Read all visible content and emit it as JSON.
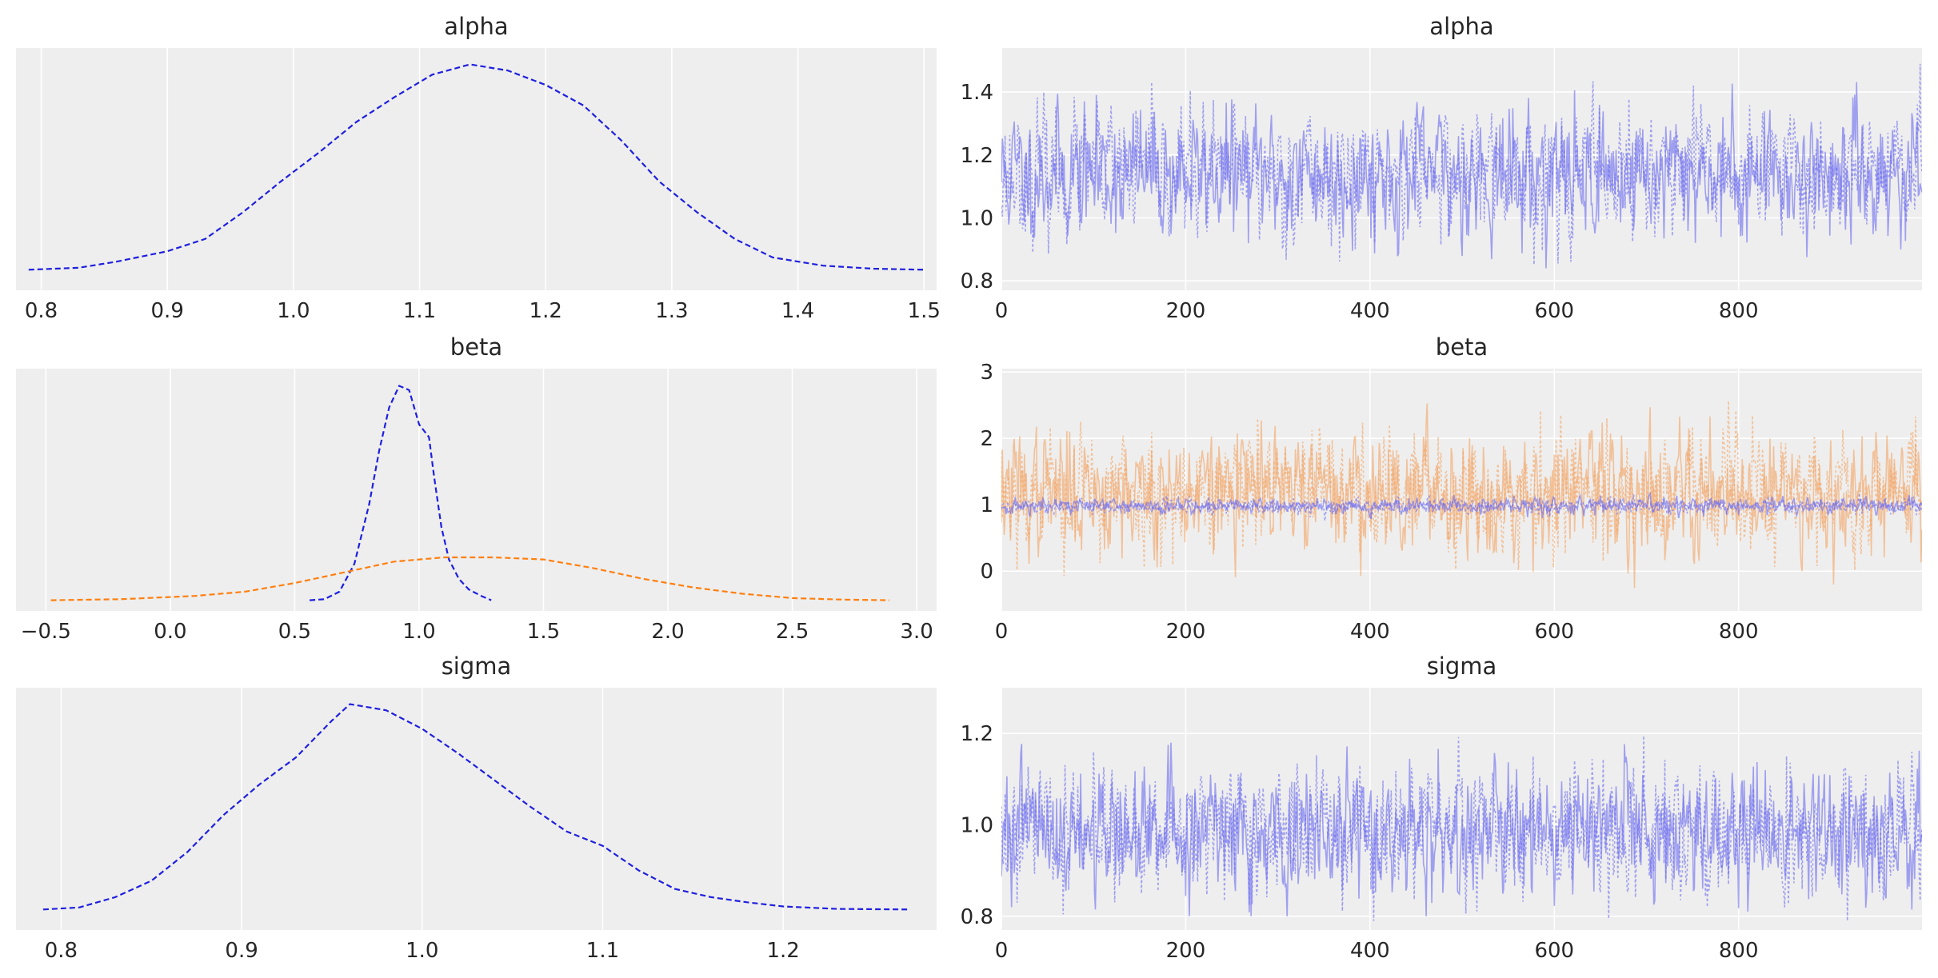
{
  "chart_data": [
    {
      "id": "kde-alpha",
      "type": "line",
      "title": "alpha",
      "xlim": [
        0.78,
        1.51
      ],
      "ylim": [
        -0.1,
        1.08
      ],
      "xticks": [
        0.8,
        0.9,
        1.0,
        1.1,
        1.2,
        1.3,
        1.4,
        1.5
      ],
      "xtick_labels": [
        "0.8",
        "0.9",
        "1.0",
        "1.1",
        "1.2",
        "1.3",
        "1.4",
        "1.5"
      ],
      "yticks": [],
      "ytick_labels": [],
      "series": [
        {
          "color": "#1f1fe0",
          "dash": "dashed",
          "x": [
            0.79,
            0.83,
            0.86,
            0.9,
            0.93,
            0.96,
            0.99,
            1.02,
            1.05,
            1.08,
            1.11,
            1.14,
            1.17,
            1.2,
            1.23,
            1.26,
            1.29,
            1.32,
            1.35,
            1.38,
            1.42,
            1.46,
            1.5
          ],
          "y": [
            0.0,
            0.01,
            0.04,
            0.09,
            0.15,
            0.28,
            0.43,
            0.57,
            0.72,
            0.84,
            0.95,
            1.0,
            0.97,
            0.9,
            0.8,
            0.63,
            0.43,
            0.28,
            0.15,
            0.06,
            0.02,
            0.005,
            0.0
          ]
        }
      ]
    },
    {
      "id": "trace-alpha",
      "type": "line",
      "title": "alpha",
      "xlim": [
        0,
        999
      ],
      "ylim": [
        0.77,
        1.54
      ],
      "xticks": [
        0,
        200,
        400,
        600,
        800
      ],
      "xtick_labels": [
        "0",
        "200",
        "400",
        "600",
        "800"
      ],
      "yticks": [
        0.8,
        1.0,
        1.2,
        1.4
      ],
      "ytick_labels": [
        "0.8",
        "1.0",
        "1.2",
        "1.4"
      ],
      "trace": [
        {
          "color": "#6b6bf0",
          "dash": "solid",
          "mean": 1.14,
          "sd": 0.1,
          "min": 0.84,
          "max": 1.47,
          "seed": 11
        },
        {
          "color": "#6b6bf0",
          "dash": "dotted",
          "mean": 1.14,
          "sd": 0.1,
          "min": 0.8,
          "max": 1.5,
          "seed": 23
        }
      ]
    },
    {
      "id": "kde-beta",
      "type": "line",
      "title": "beta",
      "xlim": [
        -0.62,
        3.08
      ],
      "ylim": [
        -0.05,
        1.08
      ],
      "xticks": [
        -0.5,
        0.0,
        0.5,
        1.0,
        1.5,
        2.0,
        2.5,
        3.0
      ],
      "xtick_labels": [
        "−0.5",
        "0.0",
        "0.5",
        "1.0",
        "1.5",
        "2.0",
        "2.5",
        "3.0"
      ],
      "yticks": [],
      "ytick_labels": [],
      "series": [
        {
          "color": "#1f1fe0",
          "dash": "dashed",
          "x": [
            0.56,
            0.62,
            0.68,
            0.74,
            0.8,
            0.84,
            0.88,
            0.92,
            0.96,
            1.0,
            1.04,
            1.06,
            1.09,
            1.12,
            1.16,
            1.2,
            1.25,
            1.29
          ],
          "y": [
            0.0,
            0.005,
            0.04,
            0.17,
            0.45,
            0.7,
            0.9,
            1.0,
            0.98,
            0.82,
            0.76,
            0.58,
            0.34,
            0.19,
            0.1,
            0.05,
            0.02,
            0.0
          ]
        },
        {
          "color": "#ff7f0e",
          "dash": "dashed",
          "x": [
            -0.48,
            -0.2,
            0.1,
            0.3,
            0.5,
            0.7,
            0.9,
            1.1,
            1.3,
            1.5,
            1.7,
            1.9,
            2.1,
            2.3,
            2.5,
            2.7,
            2.89
          ],
          "y": [
            0.0,
            0.005,
            0.02,
            0.04,
            0.08,
            0.13,
            0.18,
            0.2,
            0.2,
            0.19,
            0.15,
            0.1,
            0.06,
            0.03,
            0.01,
            0.003,
            0.0
          ]
        }
      ]
    },
    {
      "id": "trace-beta",
      "type": "line",
      "title": "beta",
      "xlim": [
        0,
        999
      ],
      "ylim": [
        -0.6,
        3.05
      ],
      "xticks": [
        0,
        200,
        400,
        600,
        800
      ],
      "xtick_labels": [
        "0",
        "200",
        "400",
        "600",
        "800"
      ],
      "yticks": [
        0,
        1,
        2,
        3
      ],
      "ytick_labels": [
        "0",
        "1",
        "2",
        "3"
      ],
      "trace": [
        {
          "color": "#f4a462",
          "dash": "solid",
          "mean": 1.2,
          "sd": 0.45,
          "min": -0.3,
          "max": 2.85,
          "seed": 37
        },
        {
          "color": "#f4a462",
          "dash": "dotted",
          "mean": 1.2,
          "sd": 0.45,
          "min": -0.45,
          "max": 2.85,
          "seed": 53
        },
        {
          "color": "#6b6bf0",
          "dash": "solid",
          "mean": 0.98,
          "sd": 0.06,
          "min": 0.75,
          "max": 1.2,
          "seed": 71
        },
        {
          "color": "#6b6bf0",
          "dash": "dotted",
          "mean": 0.98,
          "sd": 0.06,
          "min": 0.75,
          "max": 1.2,
          "seed": 89
        }
      ]
    },
    {
      "id": "kde-sigma",
      "type": "line",
      "title": "sigma",
      "xlim": [
        0.775,
        1.285
      ],
      "ylim": [
        -0.1,
        1.08
      ],
      "xticks": [
        0.8,
        0.9,
        1.0,
        1.1,
        1.2
      ],
      "xtick_labels": [
        "0.8",
        "0.9",
        "1.0",
        "1.1",
        "1.2"
      ],
      "yticks": [],
      "ytick_labels": [],
      "series": [
        {
          "color": "#1f1fe0",
          "dash": "dashed",
          "x": [
            0.79,
            0.81,
            0.83,
            0.85,
            0.87,
            0.89,
            0.91,
            0.93,
            0.95,
            0.96,
            0.98,
            1.0,
            1.02,
            1.04,
            1.06,
            1.08,
            1.1,
            1.12,
            1.14,
            1.16,
            1.18,
            1.2,
            1.23,
            1.27
          ],
          "y": [
            0.0,
            0.01,
            0.06,
            0.14,
            0.28,
            0.46,
            0.61,
            0.74,
            0.92,
            1.0,
            0.97,
            0.88,
            0.76,
            0.63,
            0.5,
            0.38,
            0.31,
            0.19,
            0.1,
            0.06,
            0.035,
            0.015,
            0.003,
            0.0
          ]
        }
      ]
    },
    {
      "id": "trace-sigma",
      "type": "line",
      "title": "sigma",
      "xlim": [
        0,
        999
      ],
      "ylim": [
        0.77,
        1.3
      ],
      "xticks": [
        0,
        200,
        400,
        600,
        800
      ],
      "xtick_labels": [
        "0",
        "200",
        "400",
        "600",
        "800"
      ],
      "yticks": [
        0.8,
        1.0,
        1.2
      ],
      "ytick_labels": [
        "0.8",
        "1.0",
        "1.2"
      ],
      "trace": [
        {
          "color": "#6b6bf0",
          "dash": "solid",
          "mean": 0.985,
          "sd": 0.07,
          "min": 0.8,
          "max": 1.24,
          "seed": 101
        },
        {
          "color": "#6b6bf0",
          "dash": "dotted",
          "mean": 0.985,
          "sd": 0.07,
          "min": 0.79,
          "max": 1.27,
          "seed": 131
        }
      ]
    }
  ]
}
